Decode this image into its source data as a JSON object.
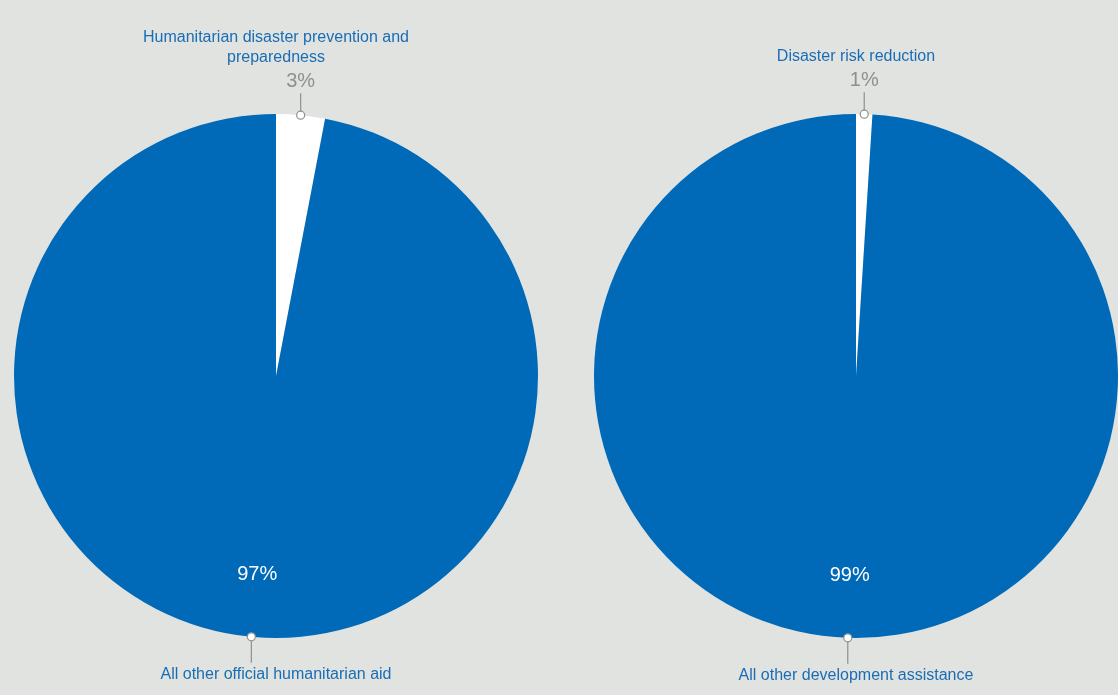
{
  "chart_data": [
    {
      "type": "pie",
      "categories": [
        "Humanitarian disaster prevention and preparedness",
        "All other official humanitarian aid"
      ],
      "values": [
        3,
        97
      ],
      "colors": [
        "#ffffff",
        "#006ab8"
      ],
      "value_labels": [
        "3%",
        "97%"
      ]
    },
    {
      "type": "pie",
      "categories": [
        "Disaster risk reduction",
        "All other development assistance"
      ],
      "values": [
        1,
        99
      ],
      "colors": [
        "#ffffff",
        "#006ab8"
      ],
      "value_labels": [
        "1%",
        "99%"
      ]
    }
  ]
}
